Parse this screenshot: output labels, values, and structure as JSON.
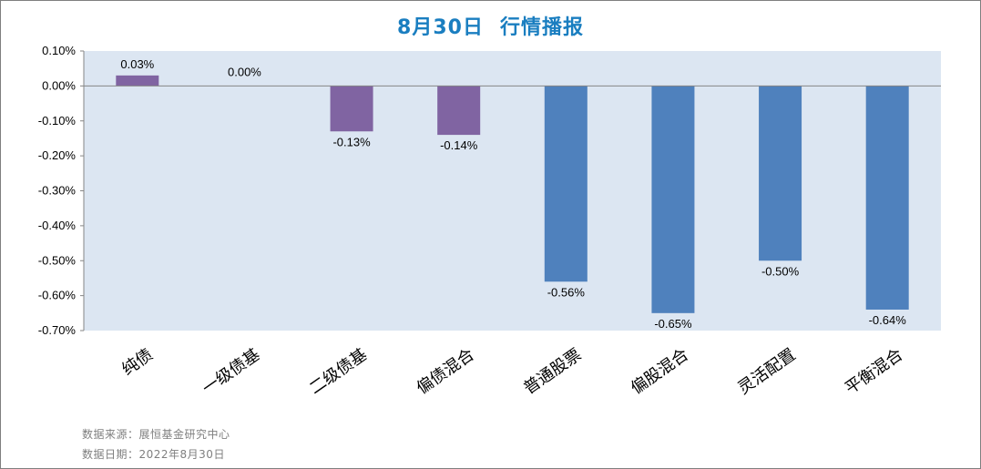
{
  "title": {
    "date": "8月30日",
    "text": "行情播报"
  },
  "chart_data": {
    "type": "bar",
    "title": "8月30日 行情播报",
    "categories": [
      "纯债",
      "一级债基",
      "二级债基",
      "偏债混合",
      "普通股票",
      "偏股混合",
      "灵活配置",
      "平衡混合"
    ],
    "values": [
      0.03,
      0.0,
      -0.13,
      -0.14,
      -0.56,
      -0.65,
      -0.5,
      -0.64
    ],
    "value_labels": [
      "0.03%",
      "0.00%",
      "-0.13%",
      "-0.14%",
      "-0.56%",
      "-0.65%",
      "-0.50%",
      "-0.64%"
    ],
    "y_ticks": [
      0.1,
      0.0,
      -0.1,
      -0.2,
      -0.3,
      -0.4,
      -0.5,
      -0.6,
      -0.7
    ],
    "y_tick_labels": [
      "0.10%",
      "0.00%",
      "-0.10%",
      "-0.20%",
      "-0.30%",
      "-0.40%",
      "-0.50%",
      "-0.60%",
      "-0.70%"
    ],
    "ylim": [
      -0.7,
      0.1
    ],
    "unit": "%",
    "grid": false,
    "legend": "none",
    "bar_colors": [
      "#8064a2",
      "#8064a2",
      "#8064a2",
      "#8064a2",
      "#4f81bd",
      "#4f81bd",
      "#4f81bd",
      "#4f81bd"
    ],
    "plot_background": "#dce6f2"
  },
  "footer": {
    "source": "数据来源：展恒基金研究中心",
    "date": "数据日期：2022年8月30日"
  }
}
